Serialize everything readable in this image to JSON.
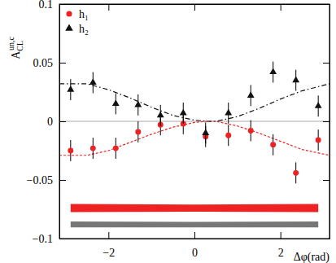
{
  "chart_data": {
    "type": "scatter",
    "x_label": "Δφ(rad)",
    "y_label": {
      "text": "A",
      "sub": "CL",
      "sup": "un,c"
    },
    "xlim": [
      -3.1416,
      3.1416
    ],
    "ylim": [
      -0.1,
      0.1
    ],
    "xticks": [
      {
        "value": -2,
        "label": "−2"
      },
      0,
      2
    ],
    "yticks": [
      {
        "value": -0.1,
        "label": "−0.1"
      },
      {
        "value": -0.05,
        "label": "−0.05"
      },
      0,
      0.05,
      0.1
    ],
    "legend": "upper left",
    "reference_line": {
      "y": 0,
      "color": "#aaaaaa"
    },
    "series": [
      {
        "name": "h₁",
        "type": "scatter",
        "marker": "circle",
        "color": "#ee2222",
        "x": [
          -2.88,
          -2.36,
          -1.83,
          -1.31,
          -0.79,
          -0.26,
          0.26,
          0.79,
          1.31,
          1.83,
          2.36,
          2.88
        ],
        "values": [
          -0.025,
          -0.023,
          -0.023,
          -0.009,
          -0.003,
          -0.002,
          -0.013,
          -0.012,
          -0.008,
          -0.02,
          -0.044,
          -0.016
        ],
        "errors": [
          0.009,
          0.009,
          0.009,
          0.009,
          0.009,
          0.009,
          0.009,
          0.009,
          0.009,
          0.009,
          0.009,
          0.009
        ]
      },
      {
        "name": "h₂",
        "type": "scatter",
        "marker": "triangle",
        "color": "#111111",
        "x": [
          -2.88,
          -2.36,
          -1.83,
          -1.31,
          -0.79,
          -0.26,
          0.26,
          0.79,
          1.31,
          1.83,
          2.36,
          2.88
        ],
        "values": [
          0.027,
          0.033,
          0.015,
          0.014,
          0.005,
          0.007,
          -0.01,
          0.007,
          0.022,
          0.042,
          0.035,
          0.013
        ],
        "errors": [
          0.009,
          0.009,
          0.009,
          0.009,
          0.009,
          0.009,
          0.009,
          0.009,
          0.009,
          0.009,
          0.009,
          0.009
        ]
      },
      {
        "type": "line",
        "line_style": "dotted",
        "color": "#ee2222",
        "x": [
          -3.14,
          -2.5,
          -2,
          -1.5,
          -1,
          -0.5,
          0,
          0.3,
          0.5,
          1,
          1.5,
          2,
          2.5,
          3.14
        ],
        "values": [
          -0.029,
          -0.029,
          -0.025,
          -0.018,
          -0.011,
          -0.005,
          -0.001,
          0,
          0,
          -0.004,
          -0.01,
          -0.017,
          -0.024,
          -0.029
        ]
      },
      {
        "type": "line",
        "line_style": "dashdot",
        "color": "#111111",
        "x": [
          -3.14,
          -2.5,
          -2,
          -1.5,
          -1,
          -0.5,
          0,
          0.3,
          0.5,
          1,
          1.5,
          2,
          2.5,
          3.14
        ],
        "values": [
          0.032,
          0.032,
          0.027,
          0.02,
          0.012,
          0.005,
          0.001,
          0,
          0,
          0.004,
          0.011,
          0.019,
          0.026,
          0.032
        ]
      },
      {
        "type": "band",
        "color": "#ee2222",
        "x": [
          -2.88,
          0,
          2.88
        ],
        "lower": [
          -0.0775,
          -0.077,
          -0.0775
        ],
        "upper": [
          -0.0705,
          -0.071,
          -0.0705
        ]
      },
      {
        "type": "band",
        "color": "#777777",
        "x": [
          -2.88,
          0,
          2.88
        ],
        "lower": [
          -0.0905,
          -0.0905,
          -0.0905
        ],
        "upper": [
          -0.0855,
          -0.0858,
          -0.0855
        ]
      }
    ]
  }
}
